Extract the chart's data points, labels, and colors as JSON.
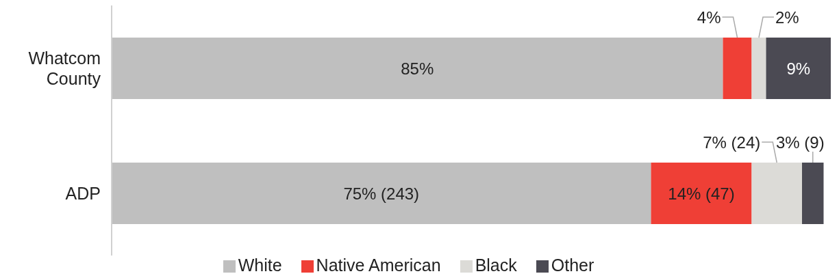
{
  "chart_data": {
    "type": "bar",
    "orientation": "horizontal",
    "stacked": true,
    "categories": [
      "Whatcom County",
      "ADP"
    ],
    "xlim": [
      0,
      100
    ],
    "tick_labels": "y",
    "legend": "bottom",
    "grid": false,
    "series": [
      {
        "name": "White",
        "color": "#bfbfbf",
        "values": [
          85,
          75
        ],
        "value_labels": [
          "85%",
          "75% (243)"
        ]
      },
      {
        "name": "Native American",
        "color": "#ef3f36",
        "values": [
          4,
          14
        ],
        "value_labels": [
          "4%",
          "14% (47)"
        ]
      },
      {
        "name": "Black",
        "color": "#dcdbd7",
        "values": [
          2,
          7
        ],
        "value_labels": [
          "2%",
          "7% (24)"
        ]
      },
      {
        "name": "Other",
        "color": "#4b4a53",
        "values": [
          9,
          3
        ],
        "value_labels": [
          "9%",
          "3% (9)"
        ]
      }
    ]
  }
}
